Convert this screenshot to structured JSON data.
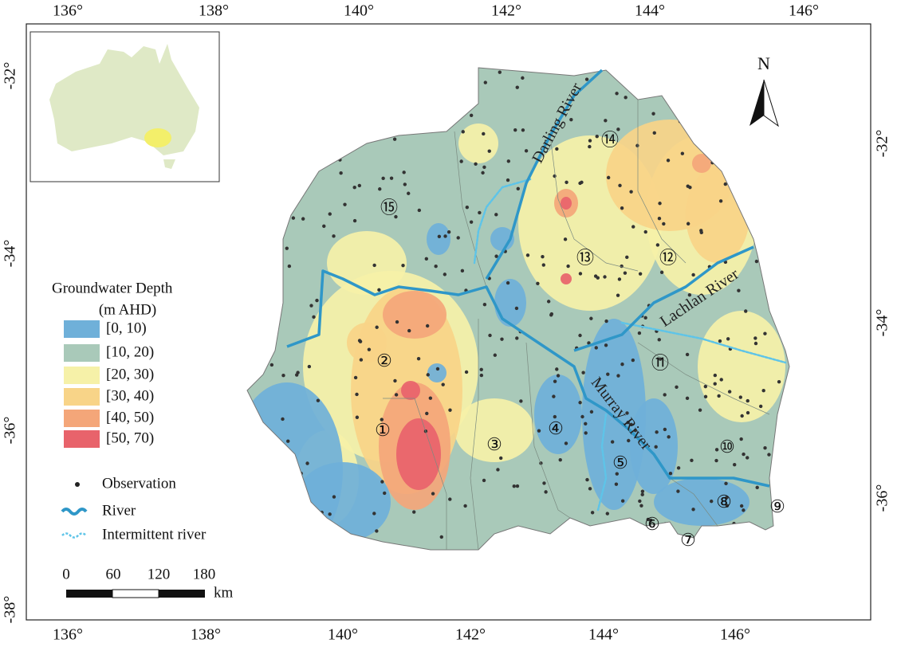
{
  "axes": {
    "top": [
      "136°",
      "138°",
      "140°",
      "142°",
      "144°",
      "146°"
    ],
    "bottom": [
      "136°",
      "138°",
      "140°",
      "142°",
      "144°",
      "146°"
    ],
    "left": [
      "-32°",
      "-34°",
      "-36°",
      "-38°"
    ],
    "right": [
      "-32°",
      "-34°",
      "-36°"
    ]
  },
  "north": "N",
  "legend": {
    "title": "Groundwater Depth",
    "unit": "(m AHD)",
    "classes": [
      {
        "label": "[0, 10)",
        "color": "#6fb0d9"
      },
      {
        "label": "[10, 20)",
        "color": "#a9c9b9"
      },
      {
        "label": "[20, 30)",
        "color": "#f6f1a8"
      },
      {
        "label": "[30, 40)",
        "color": "#f8d488"
      },
      {
        "label": "[40, 50)",
        "color": "#f4a679"
      },
      {
        "label": "[50, 70)",
        "color": "#e8636b"
      }
    ],
    "observation": "Observation",
    "river": "River",
    "intermittent": "Intermittent river"
  },
  "scale": {
    "ticks": [
      "0",
      "60",
      "120",
      "180"
    ],
    "unit": "km"
  },
  "rivers": [
    "Darling River",
    "Lachlan River",
    "Murray River"
  ],
  "regions": [
    "①",
    "②",
    "③",
    "④",
    "⑤",
    "⑥",
    "⑦",
    "⑧",
    "⑨",
    "⑩",
    "⑪",
    "⑫",
    "⑬",
    "⑭",
    "⑮"
  ]
}
